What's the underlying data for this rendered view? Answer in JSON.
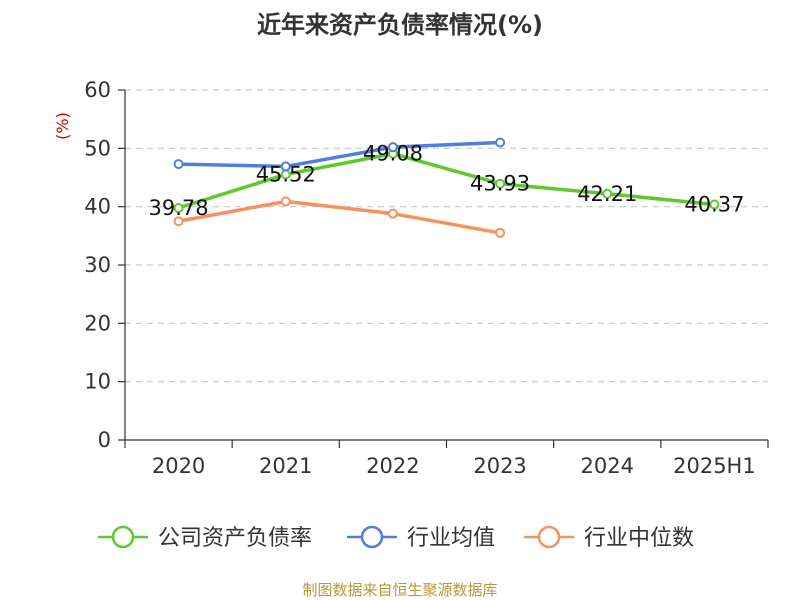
{
  "chart_data": {
    "type": "line",
    "title": "近年来资产负债率情况(%)",
    "ylabel": "(%)",
    "ylim": [
      0,
      60
    ],
    "yticks": [
      0,
      10,
      20,
      30,
      40,
      50,
      60
    ],
    "categories": [
      "2020",
      "2021",
      "2022",
      "2023",
      "2024",
      "2025H1"
    ],
    "grid": true,
    "legend_position": "bottom",
    "series": [
      {
        "name": "公司资产负债率",
        "color": "#5ec92e",
        "values": [
          39.78,
          45.52,
          49.08,
          43.93,
          42.21,
          40.37
        ],
        "labels": [
          "39.78",
          "45.52",
          "49.08",
          "43.93",
          "42.21",
          "40.37"
        ]
      },
      {
        "name": "行业均值",
        "color": "#4f7fdc",
        "values": [
          47.3,
          46.9,
          50.2,
          51.0,
          null,
          null
        ]
      },
      {
        "name": "行业中位数",
        "color": "#f5925d",
        "values": [
          37.5,
          40.9,
          38.8,
          35.5,
          null,
          null
        ]
      }
    ],
    "source": "制图数据来自恒生聚源数据库"
  }
}
